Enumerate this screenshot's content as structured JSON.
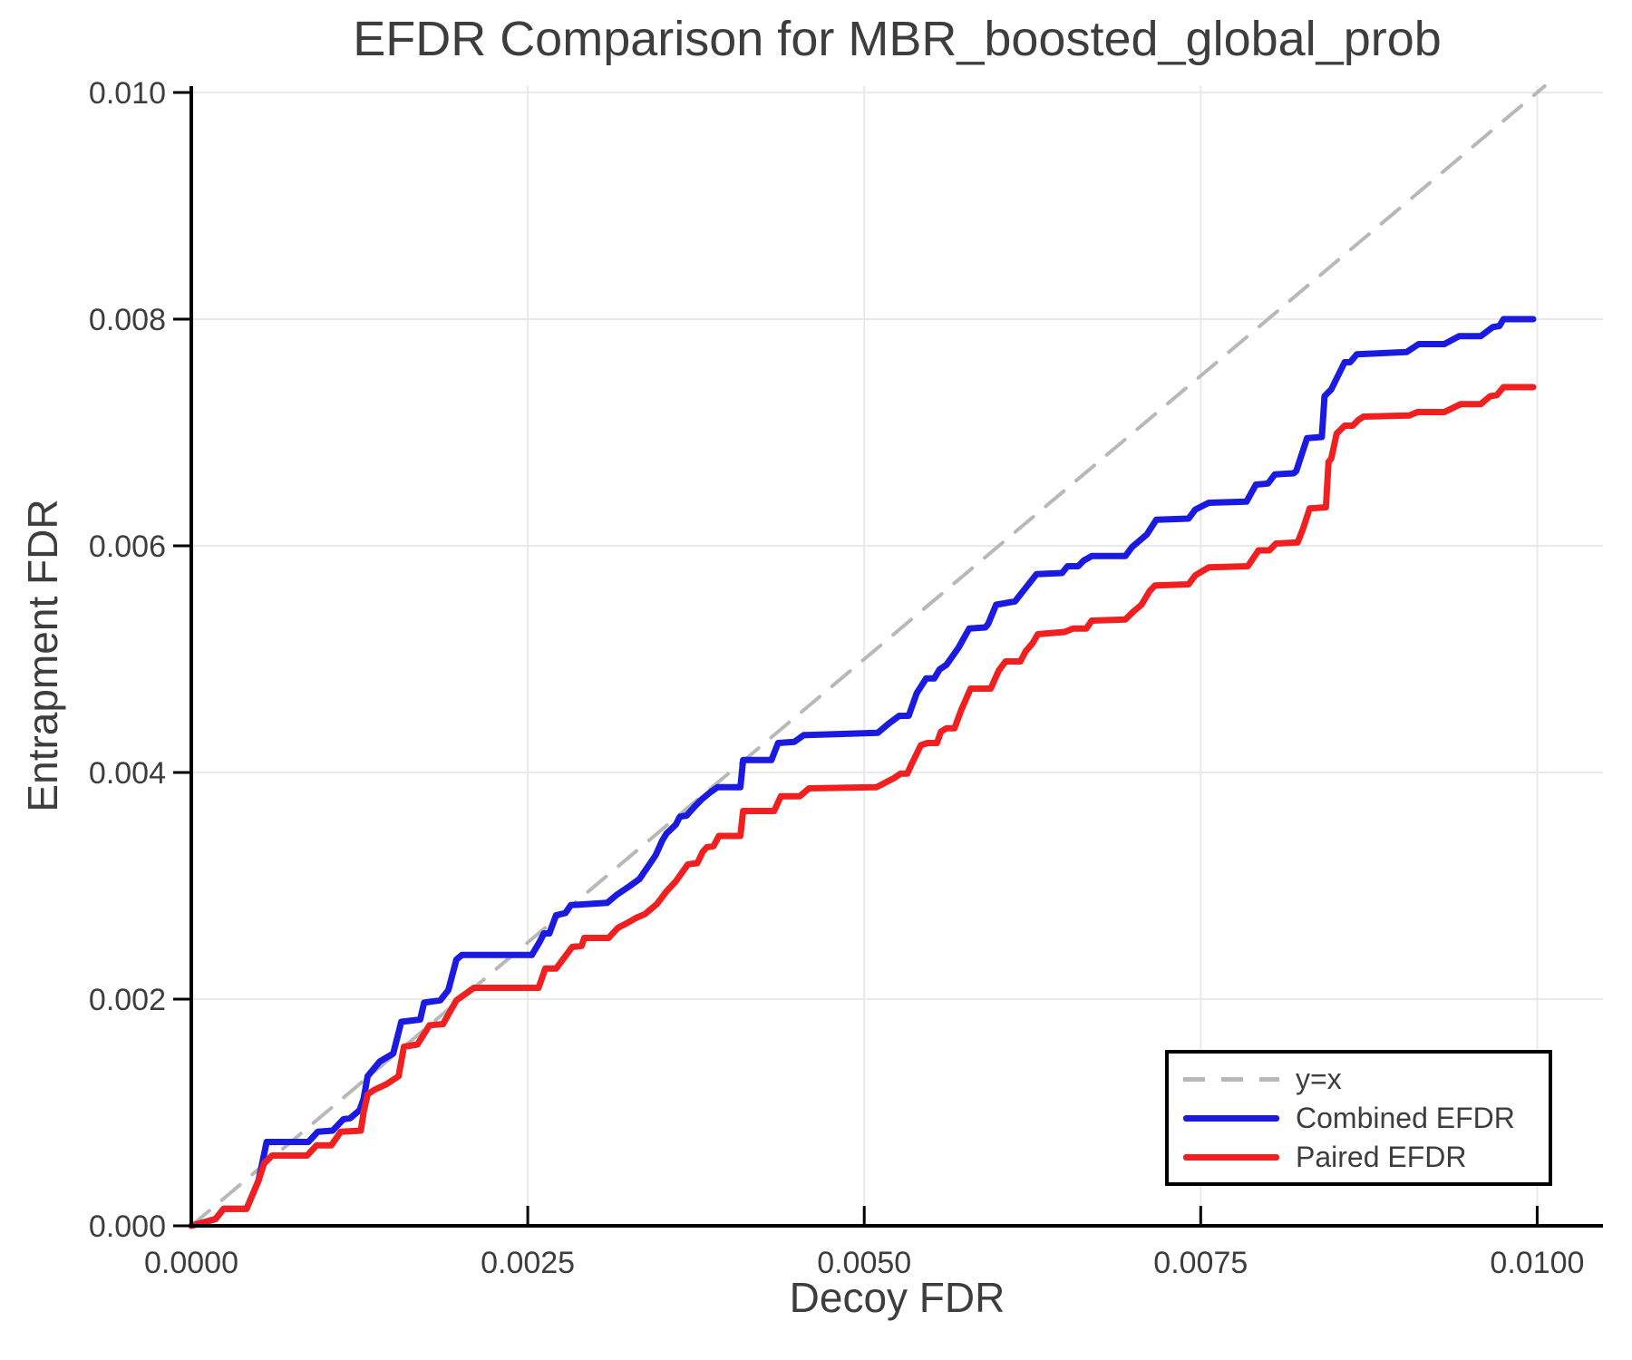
{
  "chart_data": {
    "type": "line",
    "title": "EFDR Comparison for MBR_boosted_global_prob",
    "xlabel": "Decoy FDR",
    "ylabel": "Entrapment FDR",
    "xlim": [
      0,
      0.010489
    ],
    "ylim": [
      0,
      0.010056
    ],
    "grid": true,
    "grid_color": "#e9e9e9",
    "axis_color": "#000000",
    "text_color": "#3d3d3d",
    "x_ticks": {
      "values": [
        0,
        0.0025,
        0.005,
        0.0075,
        0.01
      ],
      "labels": [
        "0.0000",
        "0.0025",
        "0.0050",
        "0.0075",
        "0.0100"
      ]
    },
    "y_ticks": {
      "values": [
        0,
        0.002,
        0.004,
        0.006,
        0.008,
        0.01
      ],
      "labels": [
        "0.000",
        "0.002",
        "0.004",
        "0.006",
        "0.008",
        "0.010"
      ]
    },
    "legend": {
      "position": "bottom-right",
      "border_color": "#000000",
      "background": "#ffffff"
    },
    "series": [
      {
        "name": "y=x",
        "style": "dashed",
        "color": "#b8b8b8",
        "width": 4,
        "points": [
          [
            0,
            0
          ],
          [
            0.010056,
            0.010056
          ]
        ]
      },
      {
        "name": "Combined EFDR",
        "style": "solid",
        "color": "#1a1ae0",
        "width": 7,
        "points": [
          [
            0,
            0
          ],
          [
            0.00018,
            6e-05
          ],
          [
            0.00024,
            0.00015
          ],
          [
            0.00041,
            0.00015
          ],
          [
            0.0005,
            0.0004
          ],
          [
            0.00056,
            0.00074
          ],
          [
            0.00087,
            0.00074
          ],
          [
            0.00094,
            0.00083
          ],
          [
            0.00105,
            0.00084
          ],
          [
            0.00113,
            0.00094
          ],
          [
            0.00118,
            0.00095
          ],
          [
            0.00125,
            0.00102
          ],
          [
            0.00128,
            0.00112
          ],
          [
            0.00131,
            0.00132
          ],
          [
            0.0014,
            0.00145
          ],
          [
            0.0015,
            0.00152
          ],
          [
            0.00156,
            0.0018
          ],
          [
            0.0017,
            0.00182
          ],
          [
            0.00173,
            0.00197
          ],
          [
            0.00185,
            0.00199
          ],
          [
            0.00191,
            0.00208
          ],
          [
            0.00197,
            0.00235
          ],
          [
            0.00201,
            0.00239
          ],
          [
            0.00253,
            0.00239
          ],
          [
            0.00259,
            0.00251
          ],
          [
            0.00262,
            0.00258
          ],
          [
            0.00266,
            0.00258
          ],
          [
            0.00271,
            0.00274
          ],
          [
            0.00278,
            0.00276
          ],
          [
            0.00282,
            0.00283
          ],
          [
            0.00309,
            0.00285
          ],
          [
            0.00316,
            0.00292
          ],
          [
            0.00321,
            0.00296
          ],
          [
            0.00326,
            0.003
          ],
          [
            0.00333,
            0.00306
          ],
          [
            0.00345,
            0.00327
          ],
          [
            0.0035,
            0.0034
          ],
          [
            0.00353,
            0.00346
          ],
          [
            0.0036,
            0.00354
          ],
          [
            0.00363,
            0.00361
          ],
          [
            0.00368,
            0.00362
          ],
          [
            0.00374,
            0.0037
          ],
          [
            0.00379,
            0.00376
          ],
          [
            0.00385,
            0.00382
          ],
          [
            0.00391,
            0.00387
          ],
          [
            0.00408,
            0.00387
          ],
          [
            0.0041,
            0.00411
          ],
          [
            0.00431,
            0.00411
          ],
          [
            0.00436,
            0.00426
          ],
          [
            0.00448,
            0.00427
          ],
          [
            0.00455,
            0.00433
          ],
          [
            0.0051,
            0.00435
          ],
          [
            0.00518,
            0.00443
          ],
          [
            0.00526,
            0.0045
          ],
          [
            0.00533,
            0.0045
          ],
          [
            0.00539,
            0.0047
          ],
          [
            0.00546,
            0.00483
          ],
          [
            0.00552,
            0.00483
          ],
          [
            0.00556,
            0.00491
          ],
          [
            0.00561,
            0.00495
          ],
          [
            0.0057,
            0.0051
          ],
          [
            0.00578,
            0.00527
          ],
          [
            0.0059,
            0.00528
          ],
          [
            0.00592,
            0.00531
          ],
          [
            0.00598,
            0.00548
          ],
          [
            0.00612,
            0.00551
          ],
          [
            0.00618,
            0.0056
          ],
          [
            0.00628,
            0.00575
          ],
          [
            0.00647,
            0.00576
          ],
          [
            0.00651,
            0.00582
          ],
          [
            0.00659,
            0.00582
          ],
          [
            0.00663,
            0.00587
          ],
          [
            0.00669,
            0.00591
          ],
          [
            0.00694,
            0.00591
          ],
          [
            0.00699,
            0.00599
          ],
          [
            0.0071,
            0.0061
          ],
          [
            0.00717,
            0.00623
          ],
          [
            0.00741,
            0.00624
          ],
          [
            0.00746,
            0.00632
          ],
          [
            0.00756,
            0.00638
          ],
          [
            0.00784,
            0.00639
          ],
          [
            0.00791,
            0.00654
          ],
          [
            0.008,
            0.00655
          ],
          [
            0.00805,
            0.00663
          ],
          [
            0.00819,
            0.00664
          ],
          [
            0.00821,
            0.00666
          ],
          [
            0.00829,
            0.00695
          ],
          [
            0.0084,
            0.00696
          ],
          [
            0.00842,
            0.00732
          ],
          [
            0.00847,
            0.00738
          ],
          [
            0.00852,
            0.0075
          ],
          [
            0.00857,
            0.00762
          ],
          [
            0.00861,
            0.00762
          ],
          [
            0.00866,
            0.00769
          ],
          [
            0.00903,
            0.00771
          ],
          [
            0.00912,
            0.00778
          ],
          [
            0.00931,
            0.00778
          ],
          [
            0.00942,
            0.00785
          ],
          [
            0.00958,
            0.00785
          ],
          [
            0.00967,
            0.00793
          ],
          [
            0.00972,
            0.00794
          ],
          [
            0.00975,
            0.008
          ],
          [
            0.00997,
            0.008
          ]
        ]
      },
      {
        "name": "Paired EFDR",
        "style": "solid",
        "color": "#f02020",
        "width": 7,
        "points": [
          [
            0,
            0
          ],
          [
            0.00018,
            6e-05
          ],
          [
            0.00024,
            0.00015
          ],
          [
            0.00041,
            0.00015
          ],
          [
            0.0005,
            0.0004
          ],
          [
            0.00054,
            0.00055
          ],
          [
            0.0006,
            0.00062
          ],
          [
            0.00086,
            0.00062
          ],
          [
            0.00093,
            0.00071
          ],
          [
            0.00104,
            0.00071
          ],
          [
            0.00111,
            0.00083
          ],
          [
            0.00126,
            0.00084
          ],
          [
            0.00128,
            0.001
          ],
          [
            0.00131,
            0.00116
          ],
          [
            0.00136,
            0.0012
          ],
          [
            0.00145,
            0.00125
          ],
          [
            0.00154,
            0.00132
          ],
          [
            0.00158,
            0.00158
          ],
          [
            0.00168,
            0.0016
          ],
          [
            0.00177,
            0.00177
          ],
          [
            0.00187,
            0.00178
          ],
          [
            0.00197,
            0.00199
          ],
          [
            0.0021,
            0.0021
          ],
          [
            0.00258,
            0.0021
          ],
          [
            0.00263,
            0.00227
          ],
          [
            0.00271,
            0.00227
          ],
          [
            0.00283,
            0.00246
          ],
          [
            0.0029,
            0.00247
          ],
          [
            0.00292,
            0.00254
          ],
          [
            0.0031,
            0.00254
          ],
          [
            0.00317,
            0.00263
          ],
          [
            0.00322,
            0.00266
          ],
          [
            0.00331,
            0.00272
          ],
          [
            0.00337,
            0.00275
          ],
          [
            0.00346,
            0.00284
          ],
          [
            0.00353,
            0.00295
          ],
          [
            0.0036,
            0.00304
          ],
          [
            0.00369,
            0.00319
          ],
          [
            0.00376,
            0.0032
          ],
          [
            0.0038,
            0.0033
          ],
          [
            0.00383,
            0.00334
          ],
          [
            0.00388,
            0.00335
          ],
          [
            0.00392,
            0.00344
          ],
          [
            0.00408,
            0.00344
          ],
          [
            0.0041,
            0.00366
          ],
          [
            0.00433,
            0.00366
          ],
          [
            0.00438,
            0.00379
          ],
          [
            0.00452,
            0.00379
          ],
          [
            0.00459,
            0.00386
          ],
          [
            0.00509,
            0.00387
          ],
          [
            0.00522,
            0.00395
          ],
          [
            0.00527,
            0.00399
          ],
          [
            0.00532,
            0.00399
          ],
          [
            0.00535,
            0.00407
          ],
          [
            0.00542,
            0.00424
          ],
          [
            0.00547,
            0.00426
          ],
          [
            0.00554,
            0.00426
          ],
          [
            0.00557,
            0.00436
          ],
          [
            0.00561,
            0.00439
          ],
          [
            0.00567,
            0.00439
          ],
          [
            0.00572,
            0.00455
          ],
          [
            0.00579,
            0.00474
          ],
          [
            0.00594,
            0.00474
          ],
          [
            0.006,
            0.0049
          ],
          [
            0.00605,
            0.00498
          ],
          [
            0.00616,
            0.00498
          ],
          [
            0.0062,
            0.00507
          ],
          [
            0.00625,
            0.00514
          ],
          [
            0.00629,
            0.00522
          ],
          [
            0.00649,
            0.00524
          ],
          [
            0.00655,
            0.00527
          ],
          [
            0.00665,
            0.00527
          ],
          [
            0.00669,
            0.00534
          ],
          [
            0.00694,
            0.00535
          ],
          [
            0.007,
            0.00542
          ],
          [
            0.00706,
            0.00548
          ],
          [
            0.00712,
            0.0056
          ],
          [
            0.00716,
            0.00565
          ],
          [
            0.00741,
            0.00566
          ],
          [
            0.00746,
            0.00574
          ],
          [
            0.00756,
            0.00581
          ],
          [
            0.00785,
            0.00582
          ],
          [
            0.00793,
            0.00596
          ],
          [
            0.00801,
            0.00596
          ],
          [
            0.00806,
            0.00602
          ],
          [
            0.00822,
            0.00603
          ],
          [
            0.00826,
            0.00615
          ],
          [
            0.00831,
            0.00633
          ],
          [
            0.00843,
            0.00634
          ],
          [
            0.00845,
            0.00674
          ],
          [
            0.00847,
            0.00677
          ],
          [
            0.00851,
            0.00699
          ],
          [
            0.00857,
            0.00706
          ],
          [
            0.00863,
            0.00706
          ],
          [
            0.00867,
            0.00711
          ],
          [
            0.00871,
            0.00714
          ],
          [
            0.00905,
            0.00715
          ],
          [
            0.00911,
            0.00718
          ],
          [
            0.00931,
            0.00718
          ],
          [
            0.00943,
            0.00725
          ],
          [
            0.00958,
            0.00725
          ],
          [
            0.00965,
            0.00732
          ],
          [
            0.0097,
            0.00733
          ],
          [
            0.00975,
            0.0074
          ],
          [
            0.00997,
            0.0074
          ]
        ]
      }
    ]
  }
}
